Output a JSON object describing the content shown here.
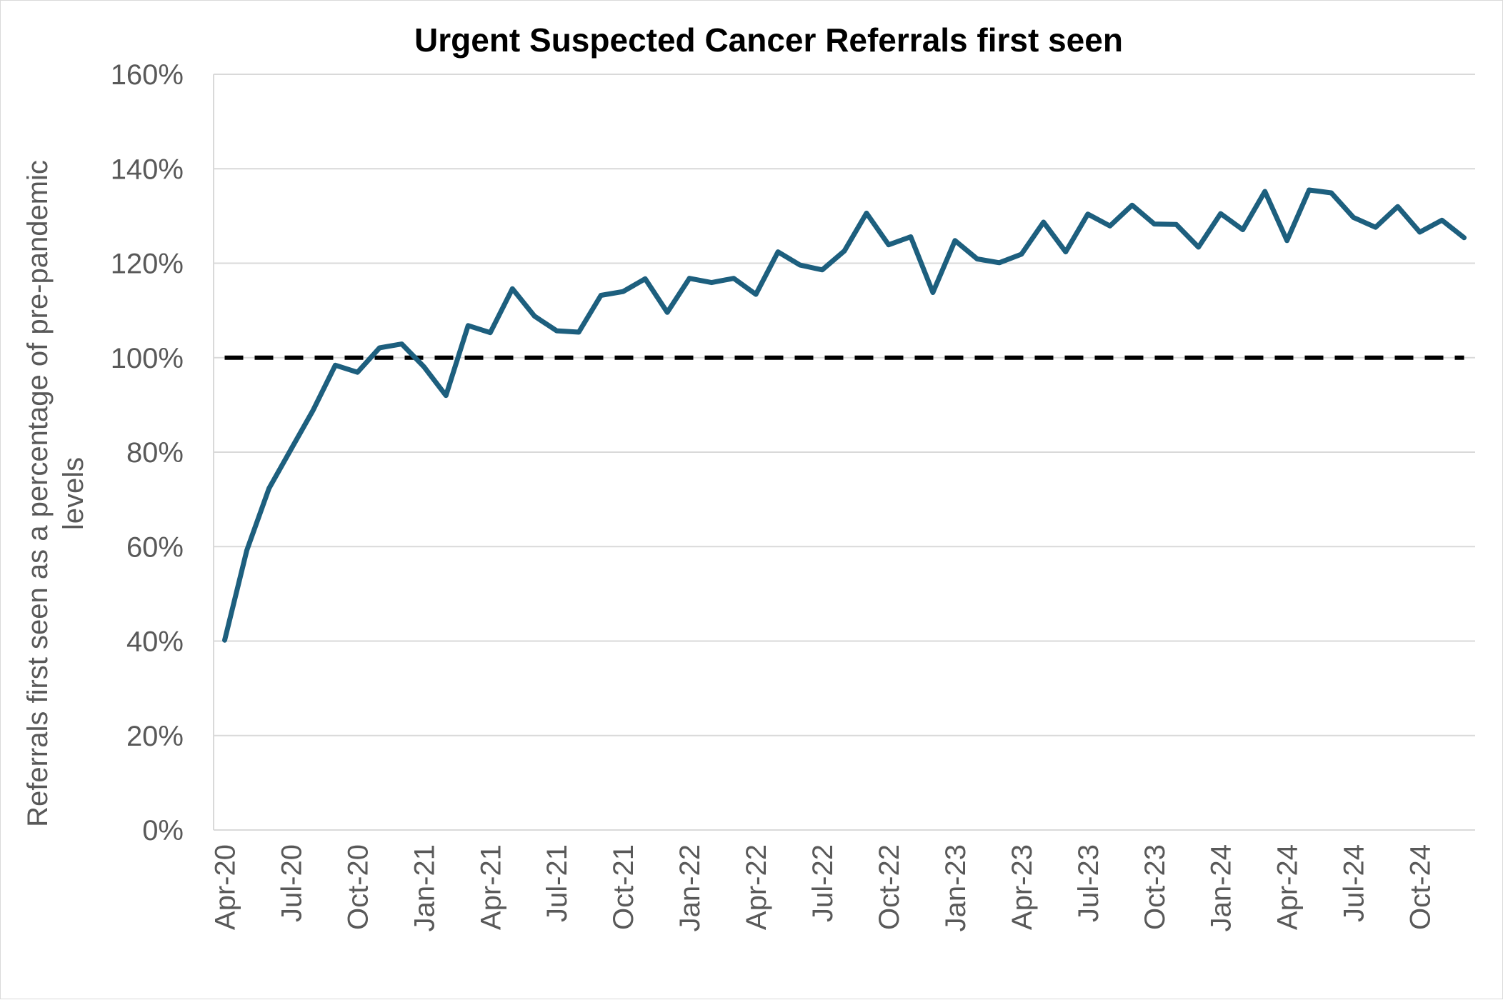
{
  "chart_data": {
    "type": "line",
    "title": "Urgent Suspected Cancer Referrals first seen",
    "ylabel": "Referrals first seen as a percentage of pre-pandemic levels",
    "xlabel": "",
    "ylim": [
      0,
      160
    ],
    "y_ticks": [
      0,
      20,
      40,
      60,
      80,
      100,
      120,
      140,
      160
    ],
    "y_tick_labels": [
      "0%",
      "20%",
      "40%",
      "60%",
      "80%",
      "100%",
      "120%",
      "140%",
      "160%"
    ],
    "categories": [
      "Apr-20",
      "May-20",
      "Jun-20",
      "Jul-20",
      "Aug-20",
      "Sep-20",
      "Oct-20",
      "Nov-20",
      "Dec-20",
      "Jan-21",
      "Feb-21",
      "Mar-21",
      "Apr-21",
      "May-21",
      "Jun-21",
      "Jul-21",
      "Aug-21",
      "Sep-21",
      "Oct-21",
      "Nov-21",
      "Dec-21",
      "Jan-22",
      "Feb-22",
      "Mar-22",
      "Apr-22",
      "May-22",
      "Jun-22",
      "Jul-22",
      "Aug-22",
      "Sep-22",
      "Oct-22",
      "Nov-22",
      "Dec-22",
      "Jan-23",
      "Feb-23",
      "Mar-23",
      "Apr-23",
      "May-23",
      "Jun-23",
      "Jul-23",
      "Aug-23",
      "Sep-23",
      "Oct-23",
      "Nov-23",
      "Dec-23",
      "Jan-24",
      "Feb-24",
      "Mar-24",
      "Apr-24",
      "May-24",
      "Jun-24",
      "Jul-24",
      "Aug-24",
      "Sep-24",
      "Oct-24",
      "Nov-24",
      "Dec-24"
    ],
    "x_tick_labels": [
      "Apr-20",
      "Jul-20",
      "Oct-20",
      "Jan-21",
      "Apr-21",
      "Jul-21",
      "Oct-21",
      "Jan-22",
      "Apr-22",
      "Jul-22",
      "Oct-22",
      "Jan-23",
      "Apr-23",
      "Jul-23",
      "Oct-23",
      "Jan-24",
      "Apr-24",
      "Jul-24",
      "Oct-24"
    ],
    "series": [
      {
        "color": "#1d5f7e",
        "values": [
          40.2,
          59.2,
          72.3,
          80.6,
          88.9,
          98.4,
          96.9,
          102.1,
          102.9,
          98.1,
          92.0,
          106.8,
          105.3,
          114.6,
          108.8,
          105.7,
          105.4,
          113.2,
          114.0,
          116.7,
          109.6,
          116.8,
          115.9,
          116.8,
          113.4,
          122.4,
          119.6,
          118.6,
          122.6,
          130.6,
          123.9,
          125.6,
          113.8,
          124.8,
          120.9,
          120.1,
          121.9,
          128.7,
          122.4,
          130.4,
          127.9,
          132.3,
          128.3,
          128.2,
          123.4,
          130.5,
          127.1,
          135.2,
          124.8,
          135.5,
          134.9,
          129.7,
          127.6,
          132.0,
          126.6,
          129.1,
          125.4
        ]
      }
    ],
    "reference_line": {
      "value": 100,
      "color": "#000000",
      "style": "dashed"
    },
    "grid": true,
    "legend": "none"
  }
}
